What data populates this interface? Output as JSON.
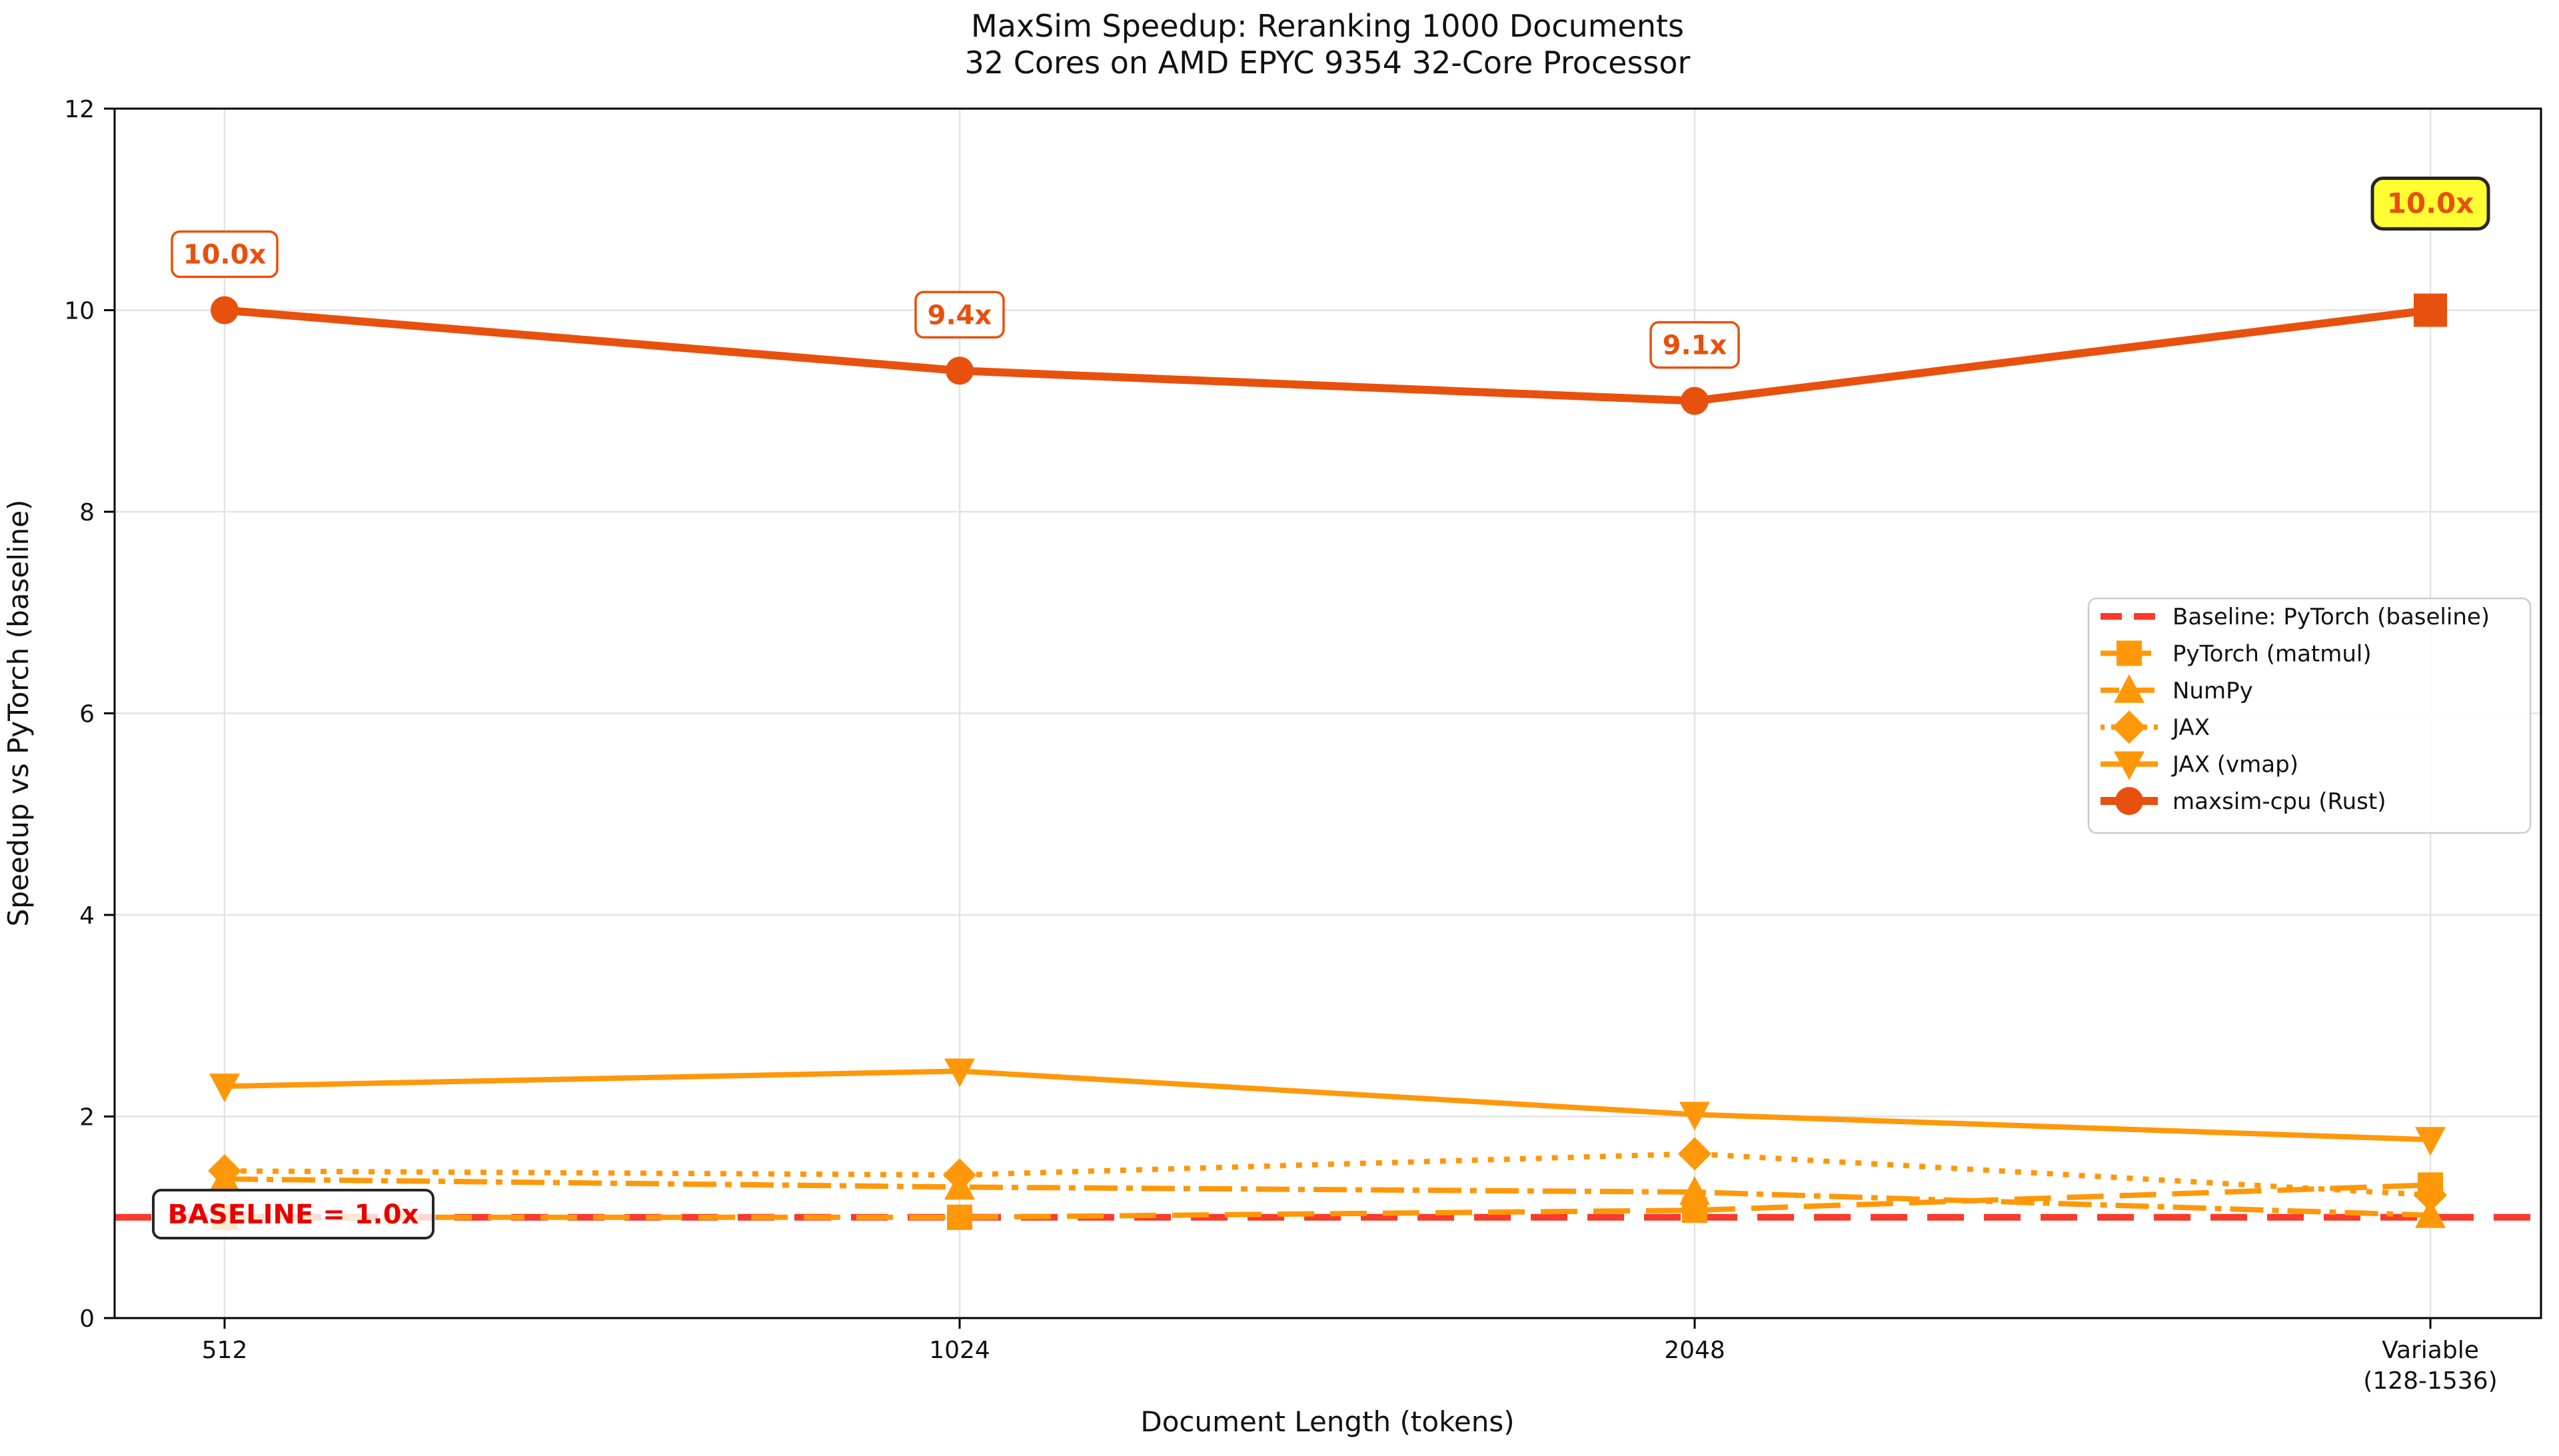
{
  "chart_data": {
    "type": "line",
    "title_line1": "MaxSim Speedup: Reranking 1000 Documents",
    "title_line2": "32 Cores on AMD EPYC 9354 32-Core Processor",
    "xlabel": "Document Length (tokens)",
    "ylabel": "Speedup vs PyTorch (baseline)",
    "x_categories": [
      {
        "label": "512",
        "sublabel": ""
      },
      {
        "label": "1024",
        "sublabel": ""
      },
      {
        "label": "2048",
        "sublabel": ""
      },
      {
        "label": "Variable",
        "sublabel": "(128-1536)"
      }
    ],
    "ylim": [
      0,
      12
    ],
    "yticks": [
      0,
      2,
      4,
      6,
      8,
      10,
      12
    ],
    "grid": true,
    "legend_position": "center right",
    "colors": {
      "orange": "#FF9808",
      "vermilion": "#E8500E",
      "baseline_red": "#F93A2C",
      "baseline_text_red": "#E60000",
      "highlight_yellow": "#FFFF33",
      "grid_gray": "#E3E3E3",
      "box_border_dark": "#262626",
      "legend_border": "#CCCCCC"
    },
    "baseline": {
      "label": "Baseline: PyTorch (baseline)",
      "value": 1.0,
      "color": "#F93A2C",
      "linestyle": "dashed",
      "annotation_text": "BASELINE = 1.0x"
    },
    "series": [
      {
        "name": "PyTorch (matmul)",
        "values": [
          1.0,
          1.0,
          1.07,
          1.32
        ],
        "color": "#FF9808",
        "linestyle": "dashed",
        "marker": "square"
      },
      {
        "name": "NumPy",
        "values": [
          1.38,
          1.3,
          1.25,
          1.02
        ],
        "color": "#FF9808",
        "linestyle": "dashdot",
        "marker": "triangle-up"
      },
      {
        "name": "JAX",
        "values": [
          1.46,
          1.42,
          1.63,
          1.22
        ],
        "color": "#FF9808",
        "linestyle": "dotted",
        "marker": "diamond"
      },
      {
        "name": "JAX (vmap)",
        "values": [
          2.3,
          2.45,
          2.02,
          1.77
        ],
        "color": "#FF9808",
        "linestyle": "solid",
        "marker": "triangle-down"
      },
      {
        "name": "maxsim-cpu (Rust)",
        "values": [
          10.0,
          9.4,
          9.1,
          10.0
        ],
        "color": "#E8500E",
        "linestyle": "solid",
        "marker": "circle",
        "last_marker": "square"
      }
    ],
    "annotations": [
      {
        "text": "10.0x",
        "x_index": 0,
        "value": 10.0,
        "style": "outline"
      },
      {
        "text": "9.4x",
        "x_index": 1,
        "value": 9.4,
        "style": "outline"
      },
      {
        "text": "9.1x",
        "x_index": 2,
        "value": 9.1,
        "style": "outline"
      },
      {
        "text": "10.0x",
        "x_index": 3,
        "value": 10.0,
        "style": "highlight"
      }
    ],
    "annotation_text_color": "#E8500E",
    "legend_entries": [
      {
        "label": "Baseline: PyTorch (baseline)",
        "color": "#F93A2C",
        "linestyle": "dashed",
        "marker": "",
        "lw": 10
      },
      {
        "label": "PyTorch (matmul)",
        "color": "#FF9808",
        "linestyle": "dashed",
        "marker": "square",
        "lw": 8
      },
      {
        "label": "NumPy",
        "color": "#FF9808",
        "linestyle": "dashdot",
        "marker": "triangle-up",
        "lw": 8
      },
      {
        "label": "JAX",
        "color": "#FF9808",
        "linestyle": "dotted",
        "marker": "diamond",
        "lw": 8
      },
      {
        "label": "JAX (vmap)",
        "color": "#FF9808",
        "linestyle": "solid",
        "marker": "triangle-down",
        "lw": 8
      },
      {
        "label": "maxsim-cpu (Rust)",
        "color": "#E8500E",
        "linestyle": "solid",
        "marker": "circle",
        "lw": 12
      }
    ]
  }
}
